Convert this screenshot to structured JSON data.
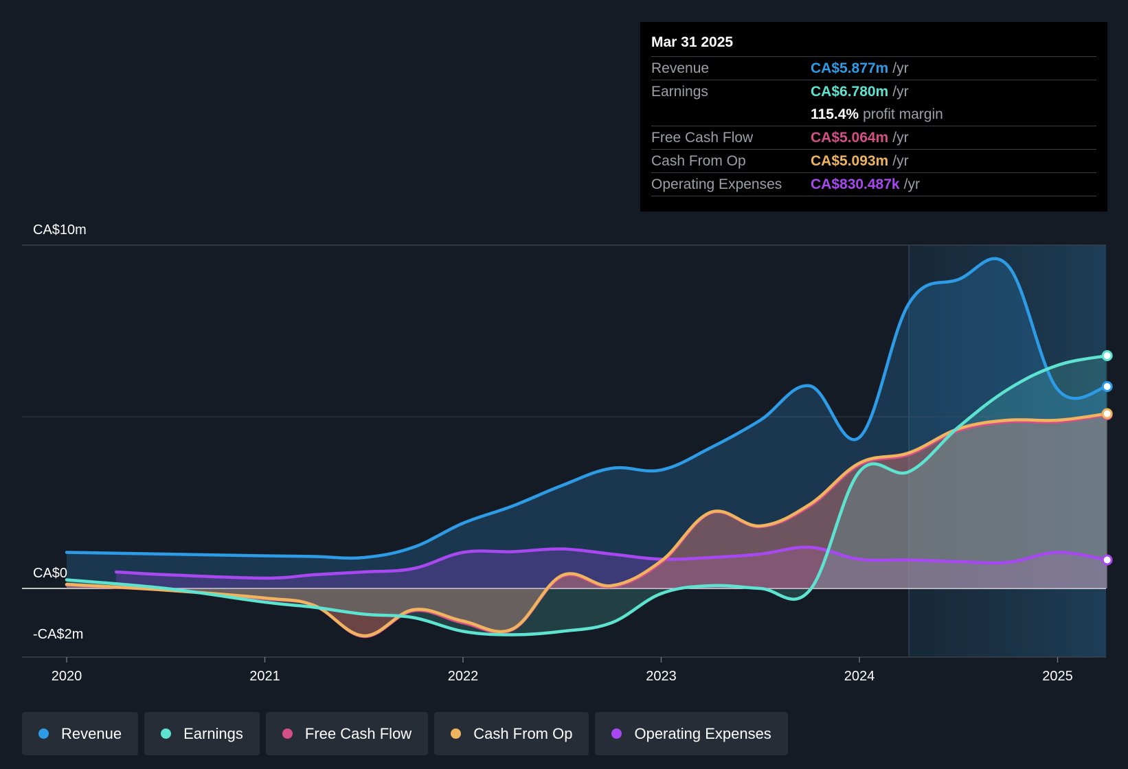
{
  "tooltip": {
    "date": "Mar 31 2025",
    "rows": [
      {
        "label": "Revenue",
        "value": "CA$5.877m",
        "unit": "/yr",
        "color": "#2d9be6"
      },
      {
        "label": "Earnings",
        "value": "CA$6.780m",
        "unit": "/yr",
        "color": "#5ee3d1"
      },
      {
        "label": "",
        "value": "115.4%",
        "unit": "profit margin",
        "color": "#ffffff"
      },
      {
        "label": "Free Cash Flow",
        "value": "CA$5.064m",
        "unit": "/yr",
        "color": "#d44f86"
      },
      {
        "label": "Cash From Op",
        "value": "CA$5.093m",
        "unit": "/yr",
        "color": "#f0b461"
      },
      {
        "label": "Operating Expenses",
        "value": "CA$830.487k",
        "unit": "/yr",
        "color": "#a748f0"
      }
    ]
  },
  "legend": [
    {
      "label": "Revenue",
      "color": "#2d9be6"
    },
    {
      "label": "Earnings",
      "color": "#5ee3d1"
    },
    {
      "label": "Free Cash Flow",
      "color": "#d44f86"
    },
    {
      "label": "Cash From Op",
      "color": "#f0b461"
    },
    {
      "label": "Operating Expenses",
      "color": "#a748f0"
    }
  ],
  "chart_data": {
    "type": "area",
    "title": "",
    "xlabel": "",
    "ylabel": "",
    "ylim": [
      -2,
      10
    ],
    "xlim": [
      2019.75,
      2025.25
    ],
    "y_axis_labels": [
      "CA$10m",
      "CA$0",
      "-CA$2m"
    ],
    "x_ticks": [
      "2020",
      "2021",
      "2022",
      "2023",
      "2024",
      "2025"
    ],
    "x_tick_values": [
      2020,
      2021,
      2022,
      2023,
      2024,
      2025
    ],
    "forecast_start": 2024.25,
    "series": [
      {
        "name": "Revenue",
        "color": "#2d9be6",
        "x": [
          2020.0,
          2020.5,
          2021.0,
          2021.25,
          2021.5,
          2021.75,
          2022.0,
          2022.25,
          2022.5,
          2022.75,
          2023.0,
          2023.25,
          2023.5,
          2023.75,
          2024.0,
          2024.25,
          2024.5,
          2024.75,
          2025.0,
          2025.25
        ],
        "y": [
          1.05,
          1.0,
          0.95,
          0.93,
          0.9,
          1.2,
          1.9,
          2.4,
          3.0,
          3.5,
          3.45,
          4.1,
          4.9,
          5.9,
          4.4,
          8.3,
          9.0,
          9.4,
          5.8,
          5.88
        ]
      },
      {
        "name": "Earnings",
        "color": "#5ee3d1",
        "x": [
          2020.0,
          2020.5,
          2021.0,
          2021.25,
          2021.5,
          2021.75,
          2022.0,
          2022.25,
          2022.5,
          2022.75,
          2023.0,
          2023.25,
          2023.5,
          2023.75,
          2024.0,
          2024.25,
          2024.5,
          2024.75,
          2025.0,
          2025.25
        ],
        "y": [
          0.25,
          0.0,
          -0.4,
          -0.55,
          -0.75,
          -0.85,
          -1.25,
          -1.35,
          -1.25,
          -1.0,
          -0.15,
          0.08,
          0.0,
          -0.05,
          3.4,
          3.4,
          4.7,
          5.8,
          6.5,
          6.78
        ]
      },
      {
        "name": "Free Cash Flow",
        "color": "#d44f86",
        "x": [
          2020.0,
          2020.5,
          2021.0,
          2021.25,
          2021.5,
          2021.75,
          2022.0,
          2022.25,
          2022.5,
          2022.75,
          2023.0,
          2023.25,
          2023.5,
          2023.75,
          2024.0,
          2024.25,
          2024.5,
          2024.75,
          2025.0,
          2025.25
        ],
        "y": [
          0.1,
          -0.05,
          -0.3,
          -0.5,
          -1.4,
          -0.65,
          -1.0,
          -1.2,
          0.35,
          0.05,
          0.75,
          2.2,
          1.8,
          2.4,
          3.6,
          3.9,
          4.6,
          4.85,
          4.85,
          5.06
        ]
      },
      {
        "name": "Cash From Op",
        "color": "#f0b461",
        "x": [
          2020.0,
          2020.5,
          2021.0,
          2021.25,
          2021.5,
          2021.75,
          2022.0,
          2022.25,
          2022.5,
          2022.75,
          2023.0,
          2023.25,
          2023.5,
          2023.75,
          2024.0,
          2024.25,
          2024.5,
          2024.75,
          2025.0,
          2025.25
        ],
        "y": [
          0.12,
          -0.05,
          -0.28,
          -0.5,
          -1.38,
          -0.62,
          -0.95,
          -1.18,
          0.38,
          0.08,
          0.8,
          2.22,
          1.82,
          2.45,
          3.65,
          3.95,
          4.65,
          4.9,
          4.9,
          5.09
        ]
      },
      {
        "name": "Operating Expenses",
        "color": "#a748f0",
        "x": [
          2020.25,
          2020.5,
          2021.0,
          2021.25,
          2021.5,
          2021.75,
          2022.0,
          2022.25,
          2022.5,
          2022.75,
          2023.0,
          2023.25,
          2023.5,
          2023.75,
          2024.0,
          2024.25,
          2024.5,
          2024.75,
          2025.0,
          2025.25
        ],
        "y": [
          0.48,
          0.4,
          0.3,
          0.4,
          0.48,
          0.58,
          1.05,
          1.07,
          1.15,
          1.0,
          0.85,
          0.9,
          1.0,
          1.2,
          0.85,
          0.83,
          0.78,
          0.76,
          1.05,
          0.83
        ]
      }
    ]
  }
}
